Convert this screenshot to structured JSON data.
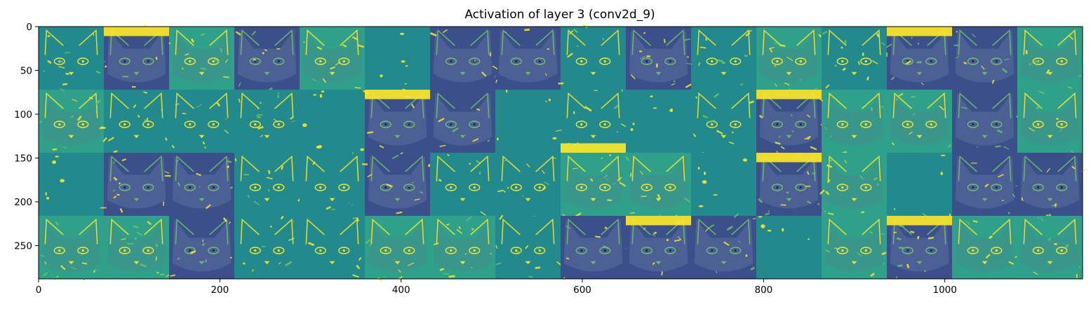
{
  "chart_data": {
    "type": "heatmap",
    "title": "Activation of layer 3 (conv2d_9)",
    "xlabel": "",
    "ylabel": "",
    "xlim": [
      0,
      1152
    ],
    "ylim": [
      288,
      0
    ],
    "grid": false,
    "legend": "none",
    "colormap": "viridis",
    "grid_layout": {
      "rows": 4,
      "cols": 16,
      "tile_size": 72
    },
    "x_ticks": [
      0,
      200,
      400,
      600,
      800,
      1000
    ],
    "y_ticks": [
      0,
      50,
      100,
      150,
      200,
      250
    ],
    "tiles": [
      [
        1,
        3,
        2,
        3,
        2,
        0,
        3,
        3,
        1,
        3,
        1,
        2,
        1,
        3,
        3,
        2
      ],
      [
        2,
        1,
        1,
        1,
        0,
        3,
        3,
        0,
        1,
        0,
        1,
        3,
        2,
        2,
        3,
        2
      ],
      [
        0,
        3,
        3,
        1,
        1,
        3,
        1,
        1,
        2,
        2,
        0,
        3,
        2,
        0,
        3,
        3
      ],
      [
        2,
        2,
        3,
        1,
        1,
        2,
        2,
        1,
        3,
        3,
        3,
        0,
        2,
        3,
        2,
        2
      ]
    ],
    "bright_bands": [
      {
        "row": 0,
        "col": 1,
        "edge": "top"
      },
      {
        "row": 1,
        "col": 5,
        "edge": "top"
      },
      {
        "row": 1,
        "col": 8,
        "edge": "bottom"
      },
      {
        "row": 1,
        "col": 11,
        "edge": "top"
      },
      {
        "row": 2,
        "col": 11,
        "edge": "top"
      },
      {
        "row": 3,
        "col": 9,
        "edge": "top"
      },
      {
        "row": 3,
        "col": 13,
        "edge": "top"
      },
      {
        "row": 0,
        "col": 13,
        "edge": "top"
      }
    ]
  },
  "colors": {
    "dark": "#3b4f8a",
    "mid": "#22898c",
    "teal_light": "#2fa08a",
    "green": "#6cc560",
    "yellow": "#fde725",
    "deep": "#453280"
  }
}
